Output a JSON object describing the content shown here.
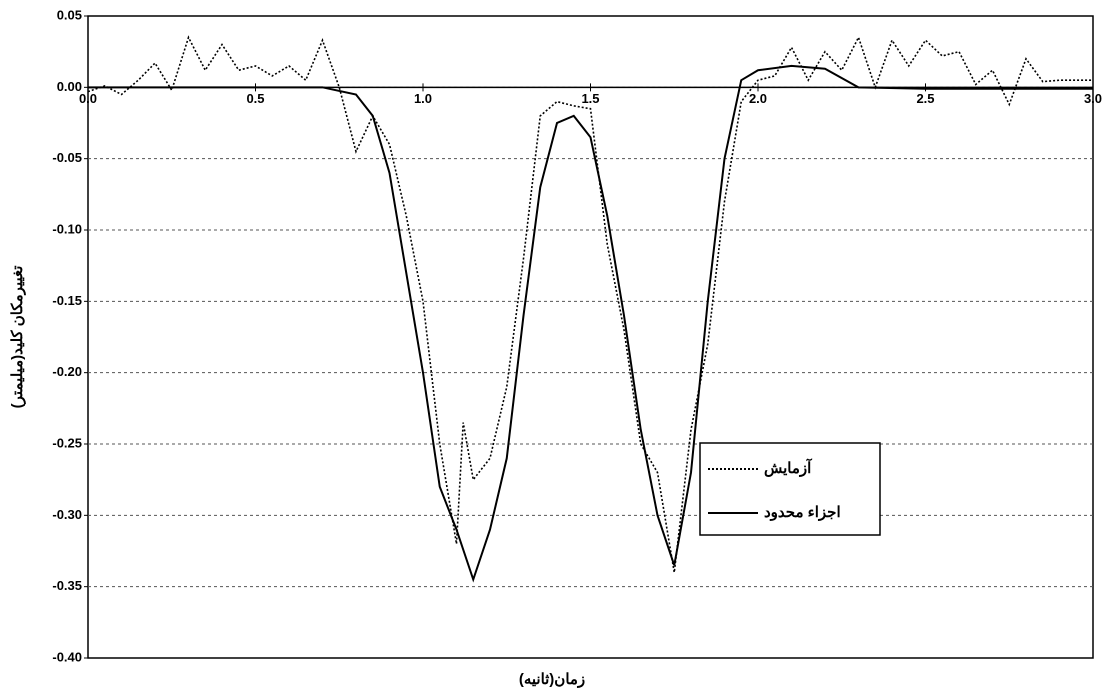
{
  "chart_data": {
    "type": "line",
    "xlabel": "زمان(ثانیه)",
    "ylabel": "تغییرمکان کلید(میلیمتر)",
    "xlim": [
      0,
      3
    ],
    "ylim": [
      -0.4,
      0.05
    ],
    "xticks": [
      {
        "value": 0,
        "label": "0.0"
      },
      0.5,
      {
        "value": 1,
        "label": "1.0"
      },
      1.5,
      {
        "value": 2,
        "label": "2.0"
      },
      2.5,
      {
        "value": 3,
        "label": "3.0"
      }
    ],
    "yticks": [
      0.05,
      {
        "value": 0,
        "label": "0.00"
      },
      -0.05,
      {
        "value": -0.1,
        "label": "-0.10"
      },
      -0.15,
      {
        "value": -0.2,
        "label": "-0.20"
      },
      -0.25,
      {
        "value": -0.3,
        "label": "-0.30"
      },
      -0.35,
      {
        "value": -0.4,
        "label": "-0.40"
      }
    ],
    "grid": true,
    "legend": "lower right",
    "series": [
      {
        "name": "آزمایش",
        "color": "#000000",
        "dash": true,
        "x": [
          0,
          0.05,
          0.1,
          0.15,
          0.2,
          0.25,
          0.3,
          0.35,
          0.4,
          0.45,
          0.5,
          0.55,
          0.6,
          0.65,
          0.7,
          0.75,
          0.8,
          0.85,
          0.9,
          0.95,
          1.0,
          1.05,
          1.1,
          1.12,
          1.15,
          1.2,
          1.25,
          1.3,
          1.35,
          1.4,
          1.45,
          1.5,
          1.55,
          1.6,
          1.65,
          1.7,
          1.75,
          1.8,
          1.85,
          1.9,
          1.95,
          2.0,
          2.05,
          2.1,
          2.15,
          2.2,
          2.25,
          2.3,
          2.35,
          2.4,
          2.45,
          2.5,
          2.55,
          2.6,
          2.65,
          2.7,
          2.75,
          2.8,
          2.85,
          2.9,
          3.0
        ],
        "values": [
          -0.003,
          0.001,
          -0.005,
          0.005,
          0.017,
          -0.002,
          0.035,
          0.012,
          0.03,
          0.012,
          0.015,
          0.008,
          0.015,
          0.005,
          0.033,
          0.0,
          -0.045,
          -0.02,
          -0.04,
          -0.09,
          -0.15,
          -0.25,
          -0.32,
          -0.235,
          -0.275,
          -0.26,
          -0.21,
          -0.12,
          -0.02,
          -0.01,
          -0.013,
          -0.015,
          -0.11,
          -0.17,
          -0.25,
          -0.27,
          -0.34,
          -0.24,
          -0.18,
          -0.08,
          -0.01,
          0.005,
          0.008,
          0.028,
          0.005,
          0.025,
          0.012,
          0.035,
          0.0,
          0.033,
          0.015,
          0.033,
          0.022,
          0.025,
          0.002,
          0.012,
          -0.012,
          0.02,
          0.004,
          0.005,
          0.005
        ]
      },
      {
        "name": "اجزاء محدود",
        "color": "#000000",
        "dash": false,
        "x": [
          0,
          0.7,
          0.8,
          0.85,
          0.9,
          0.95,
          1.0,
          1.05,
          1.1,
          1.15,
          1.2,
          1.25,
          1.3,
          1.35,
          1.4,
          1.45,
          1.5,
          1.55,
          1.6,
          1.65,
          1.7,
          1.75,
          1.8,
          1.85,
          1.9,
          1.95,
          2.0,
          2.1,
          2.2,
          2.3,
          2.5,
          3.0
        ],
        "values": [
          0,
          0,
          -0.005,
          -0.02,
          -0.06,
          -0.13,
          -0.2,
          -0.28,
          -0.31,
          -0.345,
          -0.31,
          -0.26,
          -0.16,
          -0.07,
          -0.025,
          -0.02,
          -0.035,
          -0.09,
          -0.16,
          -0.24,
          -0.3,
          -0.335,
          -0.27,
          -0.15,
          -0.05,
          0.005,
          0.012,
          0.015,
          0.013,
          0.0,
          -0.001,
          -0.001
        ]
      }
    ]
  }
}
